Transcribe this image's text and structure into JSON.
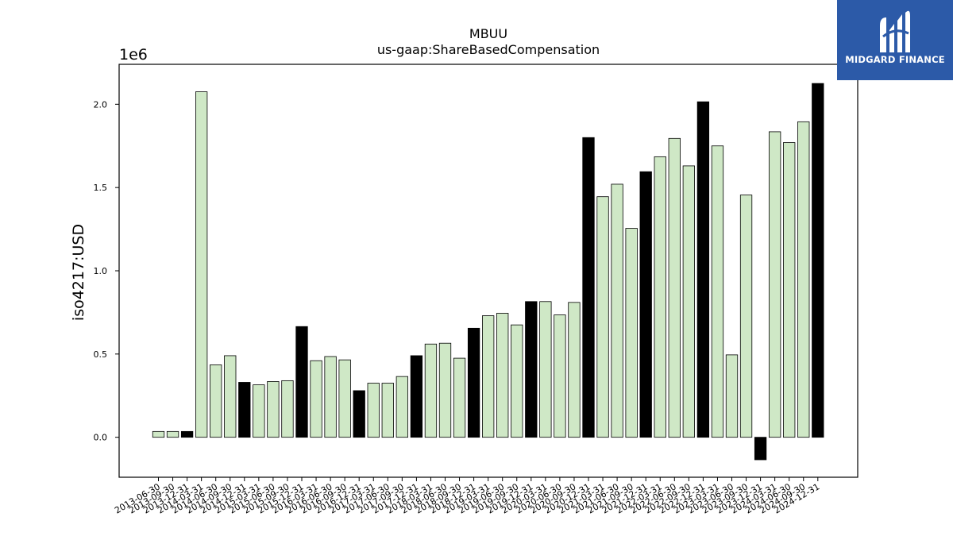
{
  "brand": {
    "name": "MIDGARD FINANCE",
    "logo_icon": "midgard-logo-icon",
    "color": "#2c5aa8"
  },
  "chart_data": {
    "type": "bar",
    "title": "MBUU",
    "subtitle": "us-gaap:ShareBasedCompensation",
    "ylabel": "iso4217:USD",
    "y_offset_label": "1e6",
    "ylim": [
      -240000,
      2240000
    ],
    "yticks": [
      0,
      500000,
      1000000,
      1500000,
      2000000
    ],
    "ytick_labels": [
      "0.0",
      "0.5",
      "1.0",
      "1.5",
      "2.0"
    ],
    "colors": {
      "quarter": "#cfe8c6",
      "year_end": "#000000",
      "edge": "#000000"
    },
    "categories": [
      "2013-06-30",
      "2013-09-30",
      "2013-12-31",
      "2014-03-31",
      "2014-06-30",
      "2014-09-30",
      "2014-12-31",
      "2015-03-31",
      "2015-06-30",
      "2015-09-30",
      "2015-12-31",
      "2016-03-31",
      "2016-06-30",
      "2016-09-30",
      "2016-12-31",
      "2017-03-31",
      "2017-06-30",
      "2017-09-30",
      "2017-12-31",
      "2018-03-31",
      "2018-06-30",
      "2018-09-30",
      "2018-12-31",
      "2019-03-31",
      "2019-06-30",
      "2019-09-30",
      "2019-12-31",
      "2020-03-31",
      "2020-06-30",
      "2020-09-30",
      "2020-12-31",
      "2021-03-31",
      "2021-06-30",
      "2021-09-30",
      "2021-12-31",
      "2022-03-31",
      "2022-06-30",
      "2022-09-30",
      "2022-12-31",
      "2023-03-31",
      "2023-06-30",
      "2023-09-30",
      "2023-12-31",
      "2024-03-31",
      "2024-06-30",
      "2024-09-30",
      "2024-12-31"
    ],
    "values": [
      35000,
      35000,
      35000,
      2075000,
      435000,
      490000,
      330000,
      315000,
      335000,
      340000,
      665000,
      460000,
      485000,
      465000,
      280000,
      325000,
      325000,
      365000,
      490000,
      560000,
      565000,
      475000,
      655000,
      730000,
      745000,
      675000,
      815000,
      815000,
      735000,
      810000,
      1800000,
      1445000,
      1520000,
      1255000,
      1595000,
      1685000,
      1795000,
      1630000,
      2015000,
      1750000,
      495000,
      1455000,
      -135000,
      1835000,
      1770000,
      1895000,
      2125000
    ],
    "highlight": [
      false,
      false,
      true,
      false,
      false,
      false,
      true,
      false,
      false,
      false,
      true,
      false,
      false,
      false,
      true,
      false,
      false,
      false,
      true,
      false,
      false,
      false,
      true,
      false,
      false,
      false,
      true,
      false,
      false,
      false,
      true,
      false,
      false,
      false,
      true,
      false,
      false,
      false,
      true,
      false,
      false,
      false,
      true,
      false,
      false,
      false,
      true
    ],
    "grid": false,
    "legend": "none"
  }
}
